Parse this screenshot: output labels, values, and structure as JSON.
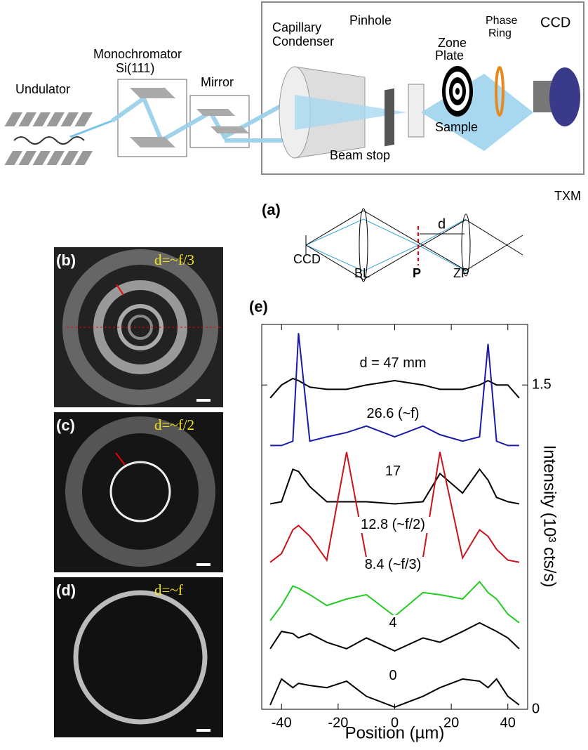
{
  "schematic": {
    "labels": {
      "undulator": "Undulator",
      "monochromator": "Monochromator",
      "crystal": "Si(111)",
      "mirror": "Mirror",
      "condenser": [
        "Capillary",
        "Condenser"
      ],
      "pinhole": "Pinhole",
      "zone_plate": [
        "Zone",
        "Plate"
      ],
      "phase_ring": [
        "Phase",
        "Ring"
      ],
      "ccd": "CCD",
      "sample": "Sample",
      "beam_stop": "Beam stop",
      "txm": "TXM"
    }
  },
  "panel_a": {
    "label": "(a)",
    "d": "d",
    "ccd": "CCD",
    "bl": "BL",
    "p": "P",
    "zp": "ZP"
  },
  "panels": [
    {
      "label": "(b)",
      "condition": "d=~f/3"
    },
    {
      "label": "(c)",
      "condition": "d=~f/2"
    },
    {
      "label": "(d)",
      "condition": "d=~f"
    }
  ],
  "chart_data": {
    "type": "line",
    "label": "(e)",
    "xlabel": "Position (µm)",
    "ylabel": "Intensity (10³ cts/s)",
    "x": [
      -44,
      -40,
      -36,
      -34,
      -30,
      -24,
      -17,
      -10,
      0,
      10,
      16,
      24,
      30,
      33,
      36,
      40,
      44
    ],
    "series": [
      {
        "name": "d = 47 mm",
        "color": "#000000",
        "values": [
          1.44,
          1.5,
          1.53,
          1.52,
          1.49,
          1.48,
          1.48,
          1.5,
          1.52,
          1.5,
          1.48,
          1.48,
          1.5,
          1.52,
          1.5,
          1.5,
          1.44
        ]
      },
      {
        "name": "26.6 (~f)",
        "color": "#1a1aa8",
        "values": [
          1.22,
          1.22,
          1.24,
          1.74,
          1.24,
          1.26,
          1.28,
          1.31,
          1.26,
          1.31,
          1.27,
          1.24,
          1.26,
          1.69,
          1.24,
          1.22,
          1.22
        ]
      },
      {
        "name": "17",
        "color": "#000000",
        "values": [
          0.95,
          0.96,
          1.11,
          1.1,
          1.03,
          0.96,
          0.96,
          0.96,
          0.95,
          0.96,
          1.09,
          1.0,
          1.11,
          1.06,
          0.98,
          0.96,
          0.95
        ]
      },
      {
        "name": "12.8 (~f/2)",
        "color": "#c8141e",
        "values": [
          0.68,
          0.72,
          0.83,
          0.85,
          0.8,
          0.69,
          1.19,
          0.7,
          0.67,
          0.7,
          1.19,
          0.7,
          0.83,
          0.8,
          0.74,
          0.69,
          0.68
        ]
      },
      {
        "name": "8.4 (~f/3)",
        "color": "#22cc22",
        "values": [
          0.41,
          0.48,
          0.57,
          0.56,
          0.53,
          0.48,
          0.51,
          0.53,
          0.43,
          0.54,
          0.53,
          0.51,
          0.59,
          0.54,
          0.51,
          0.44,
          0.4
        ]
      },
      {
        "name": "4",
        "color": "#000000",
        "values": [
          0.28,
          0.36,
          0.35,
          0.33,
          0.35,
          0.31,
          0.28,
          0.33,
          0.27,
          0.33,
          0.31,
          0.36,
          0.4,
          0.38,
          0.36,
          0.33,
          0.28
        ]
      },
      {
        "name": "0",
        "color": "#000000",
        "values": [
          0.02,
          0.14,
          0.1,
          0.12,
          0.11,
          0.1,
          0.13,
          0.06,
          0.01,
          0.06,
          0.1,
          0.14,
          0.13,
          0.1,
          0.14,
          0.06,
          0.02
        ]
      }
    ],
    "xlim": [
      -47,
      47
    ],
    "ylim": [
      0,
      1.78
    ],
    "xticks": [
      -40,
      -20,
      0,
      20,
      40
    ],
    "yticks": [
      0,
      1.5
    ]
  }
}
